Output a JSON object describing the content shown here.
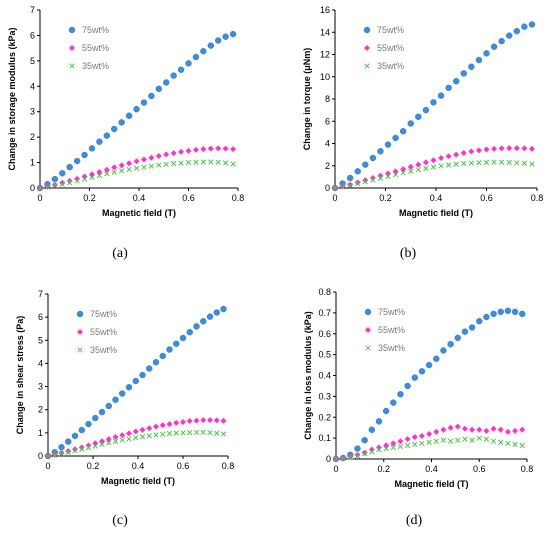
{
  "colors": {
    "75wt%": "#3c8dde",
    "55wt%": "#ff33cc",
    "35wt%": "#47c747"
  },
  "chart_data": [
    {
      "type": "scatter",
      "caption": "(a)",
      "xlabel": "Magnetic field (T)",
      "ylabel": "Change in storage modulus (kPa)",
      "xlim": [
        0,
        0.8
      ],
      "ylim": [
        0,
        7
      ],
      "xticks": [
        "0",
        "0.2",
        "0.4",
        "0.6",
        "0.8"
      ],
      "yticks": [
        "0",
        "1",
        "2",
        "3",
        "4",
        "5",
        "6",
        "7"
      ],
      "legend_position": "top-left",
      "series": [
        {
          "name": "75wt%",
          "marker": "circle",
          "x": [
            0,
            0.03,
            0.06,
            0.09,
            0.12,
            0.15,
            0.18,
            0.21,
            0.24,
            0.27,
            0.3,
            0.33,
            0.36,
            0.39,
            0.42,
            0.45,
            0.48,
            0.51,
            0.54,
            0.57,
            0.6,
            0.63,
            0.66,
            0.69,
            0.72,
            0.75,
            0.78
          ],
          "values": [
            0,
            0.15,
            0.35,
            0.58,
            0.82,
            1.06,
            1.3,
            1.56,
            1.82,
            2.06,
            2.32,
            2.58,
            2.84,
            3.1,
            3.36,
            3.62,
            3.9,
            4.15,
            4.42,
            4.65,
            4.9,
            5.15,
            5.38,
            5.6,
            5.8,
            5.95,
            6.05
          ]
        },
        {
          "name": "55wt%",
          "marker": "diamond",
          "x": [
            0,
            0.03,
            0.06,
            0.09,
            0.12,
            0.15,
            0.18,
            0.21,
            0.24,
            0.27,
            0.3,
            0.33,
            0.36,
            0.39,
            0.42,
            0.45,
            0.48,
            0.51,
            0.54,
            0.57,
            0.6,
            0.63,
            0.66,
            0.69,
            0.72,
            0.75,
            0.78
          ],
          "values": [
            0,
            0.05,
            0.12,
            0.2,
            0.28,
            0.36,
            0.45,
            0.54,
            0.63,
            0.72,
            0.81,
            0.89,
            0.97,
            1.05,
            1.12,
            1.19,
            1.26,
            1.32,
            1.37,
            1.42,
            1.46,
            1.5,
            1.53,
            1.55,
            1.56,
            1.55,
            1.53
          ]
        },
        {
          "name": "35wt%",
          "marker": "x",
          "x": [
            0,
            0.03,
            0.06,
            0.09,
            0.12,
            0.15,
            0.18,
            0.21,
            0.24,
            0.27,
            0.3,
            0.33,
            0.36,
            0.39,
            0.42,
            0.45,
            0.48,
            0.51,
            0.54,
            0.57,
            0.6,
            0.63,
            0.66,
            0.69,
            0.72,
            0.75,
            0.78
          ],
          "values": [
            0,
            0.04,
            0.09,
            0.15,
            0.21,
            0.28,
            0.35,
            0.42,
            0.49,
            0.56,
            0.62,
            0.68,
            0.73,
            0.78,
            0.82,
            0.86,
            0.9,
            0.93,
            0.96,
            0.98,
            1.0,
            1.01,
            1.02,
            1.02,
            1.01,
            0.98,
            0.94
          ]
        }
      ]
    },
    {
      "type": "scatter",
      "caption": "(b)",
      "xlabel": "Magnetic field (T)",
      "ylabel": "Change in torque (μNm)",
      "xlim": [
        0,
        0.8
      ],
      "ylim": [
        0,
        16
      ],
      "xticks": [
        "0",
        "0.2",
        "0.4",
        "0.6",
        "0.8"
      ],
      "yticks": [
        "0",
        "2",
        "4",
        "6",
        "8",
        "10",
        "12",
        "14",
        "16"
      ],
      "legend_position": "top-left",
      "series": [
        {
          "name": "75wt%",
          "marker": "circle",
          "x": [
            0,
            0.03,
            0.06,
            0.09,
            0.12,
            0.15,
            0.18,
            0.21,
            0.24,
            0.27,
            0.3,
            0.33,
            0.36,
            0.39,
            0.42,
            0.45,
            0.48,
            0.51,
            0.54,
            0.57,
            0.6,
            0.63,
            0.66,
            0.69,
            0.72,
            0.75,
            0.78
          ],
          "values": [
            0,
            0.4,
            0.9,
            1.5,
            2.1,
            2.7,
            3.3,
            3.9,
            4.5,
            5.1,
            5.8,
            6.4,
            7.0,
            7.7,
            8.3,
            9.0,
            9.6,
            10.3,
            10.9,
            11.5,
            12.1,
            12.7,
            13.2,
            13.7,
            14.1,
            14.5,
            14.7
          ]
        },
        {
          "name": "55wt%",
          "marker": "diamond",
          "x": [
            0,
            0.03,
            0.06,
            0.09,
            0.12,
            0.15,
            0.18,
            0.21,
            0.24,
            0.27,
            0.3,
            0.33,
            0.36,
            0.39,
            0.42,
            0.45,
            0.48,
            0.51,
            0.54,
            0.57,
            0.6,
            0.63,
            0.66,
            0.69,
            0.72,
            0.75,
            0.78
          ],
          "values": [
            0,
            0.12,
            0.3,
            0.5,
            0.7,
            0.9,
            1.1,
            1.3,
            1.5,
            1.7,
            1.9,
            2.1,
            2.3,
            2.5,
            2.7,
            2.85,
            3.0,
            3.15,
            3.28,
            3.38,
            3.46,
            3.52,
            3.56,
            3.58,
            3.58,
            3.56,
            3.52
          ]
        },
        {
          "name": "35wt%",
          "marker": "x",
          "x": [
            0,
            0.03,
            0.06,
            0.09,
            0.12,
            0.15,
            0.18,
            0.21,
            0.24,
            0.27,
            0.3,
            0.33,
            0.36,
            0.39,
            0.42,
            0.45,
            0.48,
            0.51,
            0.54,
            0.57,
            0.6,
            0.63,
            0.66,
            0.69,
            0.72,
            0.75,
            0.78
          ],
          "values": [
            0,
            0.1,
            0.25,
            0.4,
            0.56,
            0.72,
            0.88,
            1.04,
            1.2,
            1.36,
            1.5,
            1.64,
            1.76,
            1.88,
            1.98,
            2.06,
            2.14,
            2.2,
            2.25,
            2.28,
            2.3,
            2.32,
            2.32,
            2.3,
            2.27,
            2.22,
            2.15
          ]
        }
      ]
    },
    {
      "type": "scatter",
      "caption": "(c)",
      "xlabel": "Magnetic field (T)",
      "ylabel": "Change in shear stress (Pa)",
      "xlim": [
        0,
        0.8
      ],
      "ylim": [
        0,
        7
      ],
      "xticks": [
        "0",
        "0.2",
        "0.4",
        "0.6",
        "0.8"
      ],
      "yticks": [
        "0",
        "1",
        "2",
        "3",
        "4",
        "5",
        "6",
        "7"
      ],
      "legend_position": "top-left",
      "series": [
        {
          "name": "75wt%",
          "marker": "circle",
          "x": [
            0,
            0.03,
            0.06,
            0.09,
            0.12,
            0.15,
            0.18,
            0.21,
            0.24,
            0.27,
            0.3,
            0.33,
            0.36,
            0.39,
            0.42,
            0.45,
            0.48,
            0.51,
            0.54,
            0.57,
            0.6,
            0.63,
            0.66,
            0.69,
            0.72,
            0.75,
            0.78
          ],
          "values": [
            0,
            0.16,
            0.38,
            0.62,
            0.87,
            1.12,
            1.38,
            1.64,
            1.9,
            2.16,
            2.43,
            2.7,
            2.97,
            3.24,
            3.5,
            3.78,
            4.05,
            4.32,
            4.6,
            4.85,
            5.1,
            5.35,
            5.6,
            5.82,
            6.02,
            6.2,
            6.35
          ]
        },
        {
          "name": "55wt%",
          "marker": "diamond",
          "x": [
            0,
            0.03,
            0.06,
            0.09,
            0.12,
            0.15,
            0.18,
            0.21,
            0.24,
            0.27,
            0.3,
            0.33,
            0.36,
            0.39,
            0.42,
            0.45,
            0.48,
            0.51,
            0.54,
            0.57,
            0.6,
            0.63,
            0.66,
            0.69,
            0.72,
            0.75,
            0.78
          ],
          "values": [
            0,
            0.05,
            0.13,
            0.21,
            0.29,
            0.37,
            0.46,
            0.55,
            0.64,
            0.73,
            0.82,
            0.9,
            0.98,
            1.06,
            1.13,
            1.2,
            1.27,
            1.33,
            1.38,
            1.43,
            1.47,
            1.51,
            1.53,
            1.55,
            1.55,
            1.54,
            1.52
          ]
        },
        {
          "name": "35wt%",
          "marker": "x",
          "x": [
            0,
            0.03,
            0.06,
            0.09,
            0.12,
            0.15,
            0.18,
            0.21,
            0.24,
            0.27,
            0.3,
            0.33,
            0.36,
            0.39,
            0.42,
            0.45,
            0.48,
            0.51,
            0.54,
            0.57,
            0.6,
            0.63,
            0.66,
            0.69,
            0.72,
            0.75,
            0.78
          ],
          "values": [
            0,
            0.04,
            0.1,
            0.16,
            0.22,
            0.29,
            0.36,
            0.43,
            0.5,
            0.57,
            0.63,
            0.69,
            0.74,
            0.79,
            0.83,
            0.87,
            0.91,
            0.94,
            0.97,
            0.99,
            1.0,
            1.01,
            1.02,
            1.02,
            1.01,
            0.98,
            0.95
          ]
        }
      ]
    },
    {
      "type": "scatter",
      "caption": "(d)",
      "xlabel": "Magnetic field (T)",
      "ylabel": "Change in loss modulus (kPa)",
      "xlim": [
        0,
        0.8
      ],
      "ylim": [
        0,
        0.8
      ],
      "xticks": [
        "0",
        "0.2",
        "0.4",
        "0.6",
        "0.8"
      ],
      "yticks": [
        "0",
        "0.1",
        "0.2",
        "0.3",
        "0.4",
        "0.5",
        "0.6",
        "0.7",
        "0.8"
      ],
      "legend_position": "top-left",
      "series": [
        {
          "name": "75wt%",
          "marker": "circle",
          "x": [
            0,
            0.03,
            0.06,
            0.09,
            0.12,
            0.15,
            0.18,
            0.21,
            0.24,
            0.27,
            0.3,
            0.33,
            0.36,
            0.39,
            0.42,
            0.45,
            0.48,
            0.51,
            0.54,
            0.57,
            0.6,
            0.63,
            0.66,
            0.69,
            0.72,
            0.75,
            0.78
          ],
          "values": [
            0,
            0.005,
            0.02,
            0.05,
            0.09,
            0.14,
            0.18,
            0.23,
            0.27,
            0.31,
            0.35,
            0.39,
            0.42,
            0.45,
            0.48,
            0.52,
            0.55,
            0.58,
            0.61,
            0.63,
            0.66,
            0.68,
            0.695,
            0.705,
            0.71,
            0.705,
            0.695
          ]
        },
        {
          "name": "55wt%",
          "marker": "diamond",
          "x": [
            0,
            0.03,
            0.06,
            0.09,
            0.12,
            0.15,
            0.18,
            0.21,
            0.24,
            0.27,
            0.3,
            0.33,
            0.36,
            0.39,
            0.42,
            0.45,
            0.48,
            0.51,
            0.54,
            0.57,
            0.6,
            0.63,
            0.66,
            0.69,
            0.72,
            0.75,
            0.78
          ],
          "values": [
            0,
            0.003,
            0.01,
            0.02,
            0.03,
            0.045,
            0.055,
            0.065,
            0.075,
            0.085,
            0.095,
            0.105,
            0.11,
            0.12,
            0.13,
            0.14,
            0.15,
            0.155,
            0.145,
            0.14,
            0.14,
            0.135,
            0.145,
            0.14,
            0.13,
            0.135,
            0.14
          ]
        },
        {
          "name": "35wt%",
          "marker": "x",
          "x": [
            0,
            0.03,
            0.06,
            0.09,
            0.12,
            0.15,
            0.18,
            0.21,
            0.24,
            0.27,
            0.3,
            0.33,
            0.36,
            0.39,
            0.42,
            0.45,
            0.48,
            0.51,
            0.54,
            0.57,
            0.6,
            0.63,
            0.66,
            0.69,
            0.72,
            0.75,
            0.78
          ],
          "values": [
            0,
            0.002,
            0.008,
            0.015,
            0.025,
            0.035,
            0.045,
            0.05,
            0.055,
            0.06,
            0.065,
            0.07,
            0.075,
            0.08,
            0.085,
            0.09,
            0.085,
            0.09,
            0.095,
            0.09,
            0.1,
            0.095,
            0.085,
            0.08,
            0.075,
            0.07,
            0.065
          ]
        }
      ]
    }
  ]
}
